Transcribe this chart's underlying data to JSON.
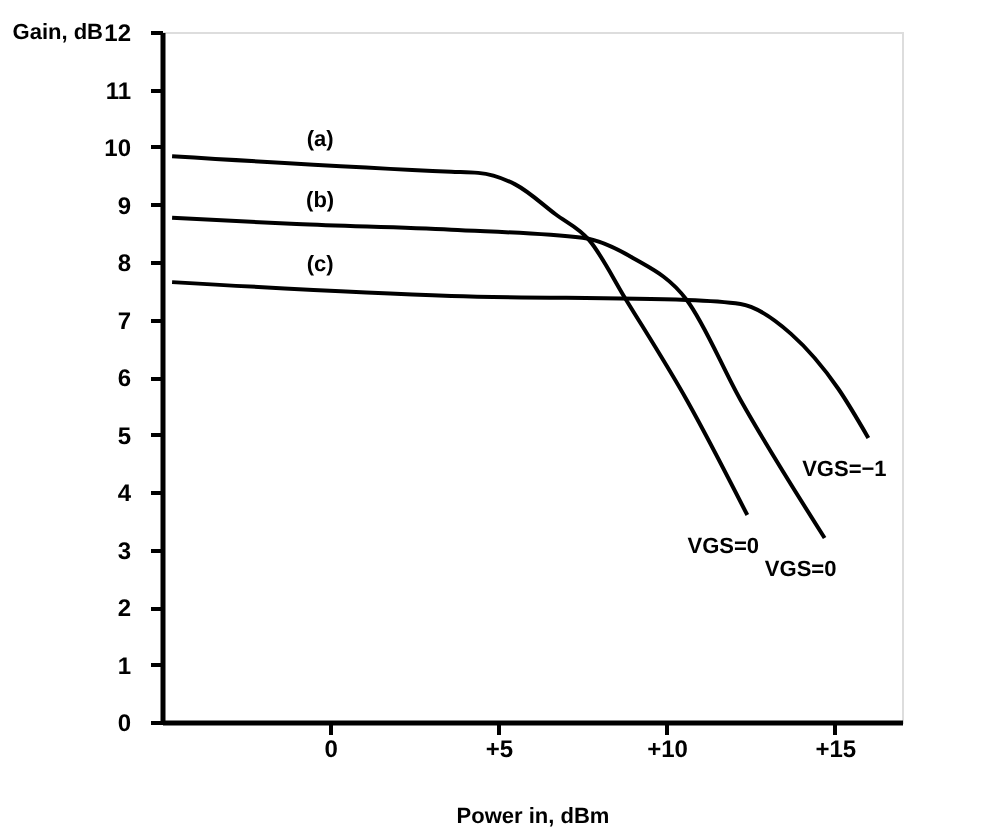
{
  "chart_data": {
    "type": "line",
    "xlabel": "Power in, dBm",
    "ylabel": "Gain, dB",
    "xlim": [
      -5,
      17
    ],
    "xticks": [
      0,
      {
        "value": 5,
        "label": "+5"
      },
      {
        "value": 10,
        "label": "+10"
      },
      {
        "value": 15,
        "label": "+15"
      }
    ],
    "ylim": [
      0,
      12
    ],
    "yticks": [
      0,
      1,
      2,
      3,
      4,
      5,
      6,
      7,
      8,
      9,
      10,
      11,
      12
    ],
    "grid": false,
    "legend": false,
    "marker": "none",
    "line_style": "solid",
    "series": [
      {
        "name": "(a)",
        "color": "#000000",
        "x": [
          -4.7,
          3.6,
          4.4,
          5.5,
          6.7,
          7.7,
          8.8,
          10.6,
          12.4
        ],
        "values": [
          9.84,
          9.57,
          9.55,
          9.35,
          8.83,
          8.38,
          7.34,
          5.6,
          3.6
        ]
      },
      {
        "name": "(b)",
        "color": "#000000",
        "x": [
          -4.7,
          -1.0,
          3.6,
          7.5,
          9.0,
          10.6,
          12.2,
          14.7
        ],
        "values": [
          8.77,
          8.66,
          8.56,
          8.42,
          8.07,
          7.34,
          5.6,
          3.2
        ]
      },
      {
        "name": "(c)",
        "color": "#000000",
        "x": [
          -4.7,
          3.6,
          10.6,
          12.2,
          13.7,
          15.1,
          16.0
        ],
        "values": [
          7.65,
          7.41,
          7.34,
          7.27,
          6.75,
          5.8,
          4.94
        ]
      }
    ],
    "annotations": [
      "VGS=0",
      "VGS=0",
      "VGS=−1"
    ]
  }
}
